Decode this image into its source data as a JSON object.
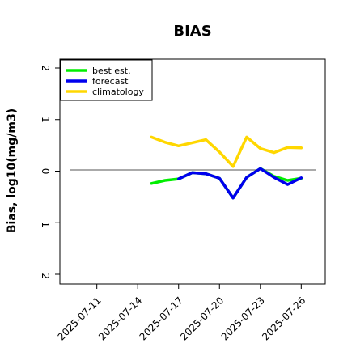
{
  "chart_data": {
    "type": "line",
    "title": "BIAS",
    "xlabel": "",
    "ylabel": "Bias, log10(mg/m3)",
    "ylim": [
      -2,
      2
    ],
    "yticks": [
      "-2",
      "-1",
      "0",
      "1",
      "2"
    ],
    "xlim": [
      "2025-07-09",
      "2025-07-28"
    ],
    "xticks": [
      "2025-07-11",
      "2025-07-14",
      "2025-07-17",
      "2025-07-20",
      "2025-07-23",
      "2025-07-26"
    ],
    "highlight_tick": "2025-07-17",
    "highlight_color": "#2ca02c",
    "zero_line": true,
    "legend_position": "top-left",
    "series": [
      {
        "name": "best est.",
        "color": "#00ee00",
        "x": [
          "2025-07-15",
          "2025-07-16",
          "2025-07-17",
          "2025-07-18",
          "2025-07-19",
          "2025-07-20",
          "2025-07-21",
          "2025-07-22",
          "2025-07-23",
          "2025-07-24",
          "2025-07-25",
          "2025-07-26"
        ],
        "values": [
          -0.24,
          -0.18,
          -0.15,
          -0.03,
          -0.05,
          -0.14,
          -0.52,
          -0.12,
          0.05,
          -0.1,
          -0.18,
          -0.14
        ]
      },
      {
        "name": "forecast",
        "color": "#0000ee",
        "x": [
          "2025-07-17",
          "2025-07-18",
          "2025-07-19",
          "2025-07-20",
          "2025-07-21",
          "2025-07-22",
          "2025-07-23",
          "2025-07-24",
          "2025-07-25",
          "2025-07-26"
        ],
        "values": [
          -0.15,
          -0.03,
          -0.05,
          -0.14,
          -0.52,
          -0.12,
          0.05,
          -0.12,
          -0.26,
          -0.13
        ]
      },
      {
        "name": "climatology",
        "color": "#ffd700",
        "x": [
          "2025-07-15",
          "2025-07-16",
          "2025-07-17",
          "2025-07-18",
          "2025-07-19",
          "2025-07-20",
          "2025-07-21",
          "2025-07-22",
          "2025-07-23",
          "2025-07-24",
          "2025-07-25",
          "2025-07-26"
        ],
        "values": [
          0.66,
          0.56,
          0.49,
          0.55,
          0.61,
          0.37,
          0.09,
          0.66,
          0.44,
          0.36,
          0.46,
          0.45
        ]
      }
    ]
  }
}
